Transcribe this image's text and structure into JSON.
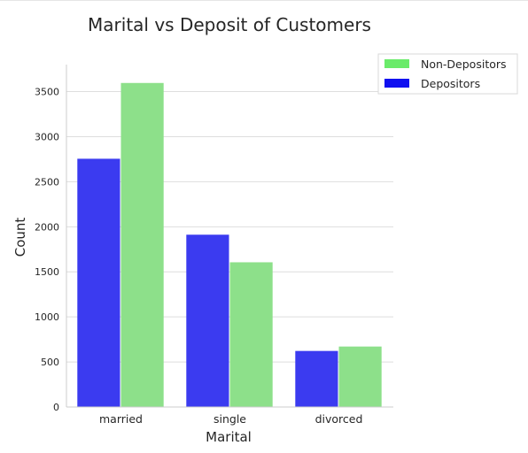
{
  "chart_data": {
    "type": "bar",
    "title": "Marital vs Deposit of Customers",
    "xlabel": "Marital",
    "ylabel": "Count",
    "categories": [
      "married",
      "single",
      "divorced"
    ],
    "series": [
      {
        "name": "Depositors",
        "color": "#3b3bf0",
        "values": [
          2755,
          1912,
          622
        ]
      },
      {
        "name": "Non-Depositors",
        "color": "#8de08a",
        "values": [
          3596,
          1606,
          671
        ]
      }
    ],
    "legend_order": [
      "Non-Depositors",
      "Depositors"
    ],
    "legend_colors": {
      "Non-Depositors": "#6aeb6a",
      "Depositors": "#1010f0"
    },
    "ylim": [
      0,
      3800
    ],
    "yticks": [
      0,
      500,
      1000,
      1500,
      2000,
      2500,
      3000,
      3500
    ],
    "grid": true,
    "legend_position": "top-right"
  }
}
